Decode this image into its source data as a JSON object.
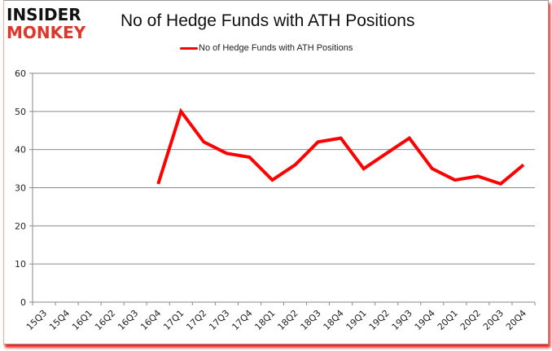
{
  "logo": {
    "line1": "INSIDER",
    "line2": "MONKEY"
  },
  "chart_data": {
    "type": "line",
    "title": "No of Hedge Funds with ATH Positions",
    "xlabel": "",
    "ylabel": "",
    "ylim": [
      0,
      60
    ],
    "yticks": [
      0,
      10,
      20,
      30,
      40,
      50,
      60
    ],
    "grid": true,
    "legend_position": "top",
    "categories": [
      "15Q3",
      "15Q4",
      "16Q1",
      "16Q2",
      "16Q3",
      "16Q4",
      "17Q1",
      "17Q2",
      "17Q3",
      "17Q4",
      "18Q1",
      "18Q2",
      "18Q3",
      "18Q4",
      "19Q1",
      "19Q2",
      "19Q3",
      "19Q4",
      "20Q1",
      "20Q2",
      "20Q3",
      "20Q4"
    ],
    "series": [
      {
        "name": "No of Hedge Funds with ATH Positions",
        "color": "#ff0000",
        "values": [
          null,
          null,
          null,
          null,
          null,
          31,
          50,
          42,
          39,
          38,
          32,
          36,
          42,
          43,
          35,
          39,
          43,
          35,
          32,
          33,
          31,
          36
        ]
      }
    ]
  }
}
